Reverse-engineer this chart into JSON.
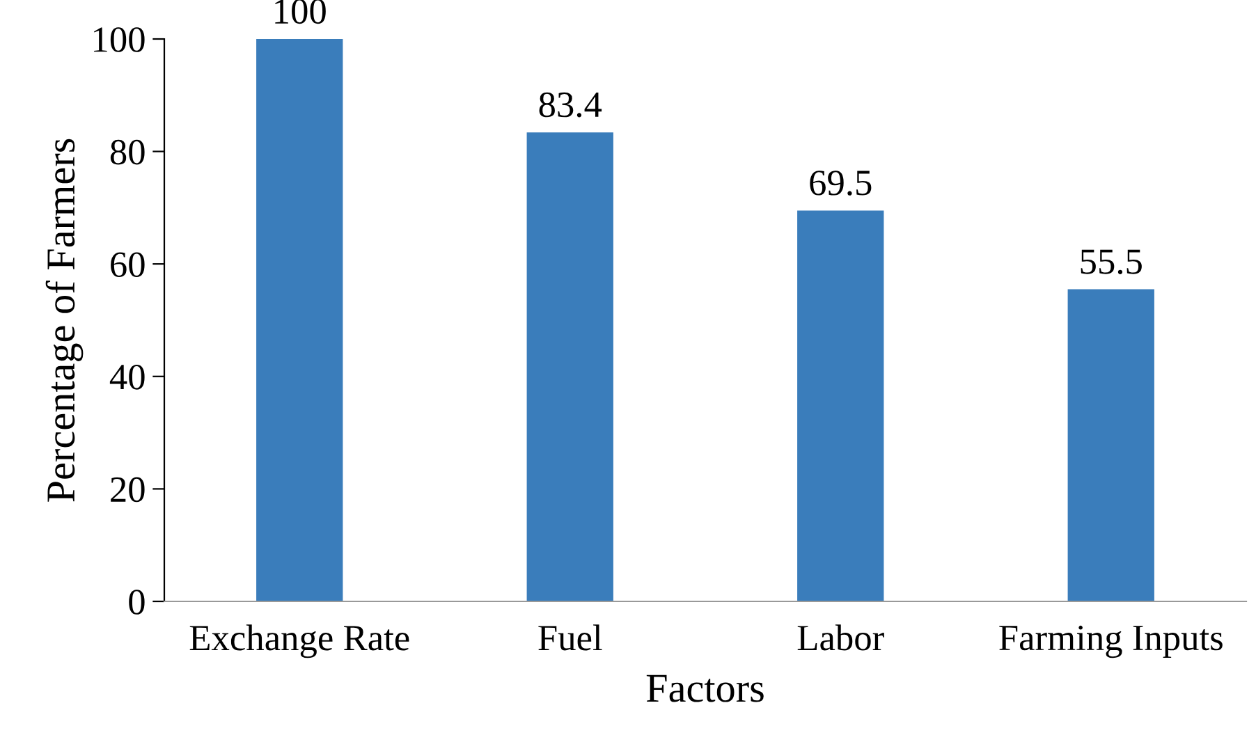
{
  "chart_data": {
    "type": "bar",
    "xlabel": "Factors",
    "ylabel": "Percentage of Farmers",
    "categories": [
      "Exchange Rate",
      "Fuel",
      "Labor",
      "Farming Inputs"
    ],
    "values": [
      100,
      83.4,
      69.5,
      55.5
    ],
    "color": "#3a7dbb",
    "ylim": [
      0,
      100
    ],
    "yticks": [
      0,
      20,
      40,
      60,
      80,
      100
    ],
    "grid": false,
    "data_labels": true
  }
}
